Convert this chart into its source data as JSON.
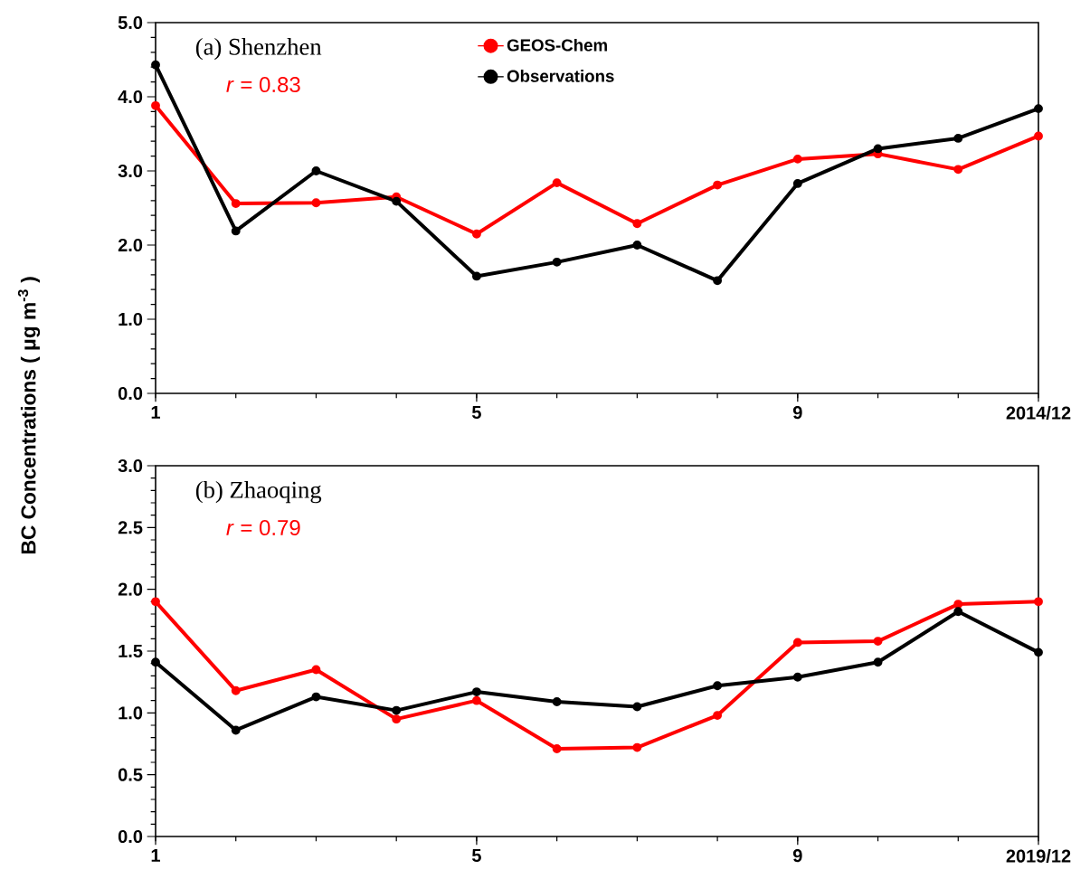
{
  "chart_data": [
    {
      "type": "line",
      "ylabel": "BC Concentrations ( μg m$^{-3}$ )",
      "annotations": [
        "(a) Shenzhen",
        "*r* = 0.83"
      ],
      "x": [
        1,
        2,
        3,
        4,
        5,
        6,
        7,
        8,
        9,
        10,
        11,
        12
      ],
      "xlim": [
        1,
        12
      ],
      "xticks": [
        1,
        5,
        9,
        {
          "value": 12,
          "label": "2014/12"
        }
      ],
      "ylim": [
        0,
        5
      ],
      "yticks": [
        {
          "value": 0,
          "label": "0.0"
        },
        {
          "value": 1,
          "label": "1.0"
        },
        {
          "value": 2,
          "label": "2.0"
        },
        {
          "value": 3,
          "label": "3.0"
        },
        {
          "value": 4,
          "label": "4.0"
        },
        {
          "value": 5,
          "label": "5.0"
        }
      ],
      "marker": "circle",
      "line_style": "solid",
      "legend": "top",
      "grid": false,
      "series": [
        {
          "name": "GEOS-Chem",
          "color": "#ff0000",
          "values": [
            3.88,
            2.56,
            2.57,
            2.65,
            2.15,
            2.84,
            2.29,
            2.81,
            3.16,
            3.23,
            3.02,
            3.47
          ]
        },
        {
          "name": "Observations",
          "color": "#000000",
          "values": [
            4.43,
            2.19,
            3.0,
            2.59,
            1.58,
            1.77,
            2.0,
            1.52,
            2.83,
            3.3,
            3.44,
            3.84
          ]
        }
      ]
    },
    {
      "type": "line",
      "annotations": [
        "(b) Zhaoqing",
        "*r* = 0.79"
      ],
      "x": [
        1,
        2,
        3,
        4,
        5,
        6,
        7,
        8,
        9,
        10,
        11,
        12
      ],
      "xlim": [
        1,
        12
      ],
      "xticks": [
        1,
        5,
        9,
        {
          "value": 12,
          "label": "2019/12"
        }
      ],
      "ylim": [
        0,
        3
      ],
      "yticks": [
        {
          "value": 0,
          "label": "0.0"
        },
        {
          "value": 0.5,
          "label": "0.5"
        },
        {
          "value": 1,
          "label": "1.0"
        },
        {
          "value": 1.5,
          "label": "1.5"
        },
        {
          "value": 2,
          "label": "2.0"
        },
        {
          "value": 2.5,
          "label": "2.5"
        },
        {
          "value": 3,
          "label": "3.0"
        }
      ],
      "marker": "circle",
      "line_style": "solid",
      "grid": false,
      "series": [
        {
          "color": "#ff0000",
          "values": [
            1.9,
            1.18,
            1.35,
            0.95,
            1.1,
            0.71,
            0.72,
            0.98,
            1.57,
            1.58,
            1.88,
            1.9
          ]
        },
        {
          "color": "#000000",
          "values": [
            1.41,
            0.86,
            1.13,
            1.02,
            1.17,
            1.09,
            1.05,
            1.22,
            1.29,
            1.41,
            1.82,
            1.49
          ]
        }
      ]
    }
  ]
}
